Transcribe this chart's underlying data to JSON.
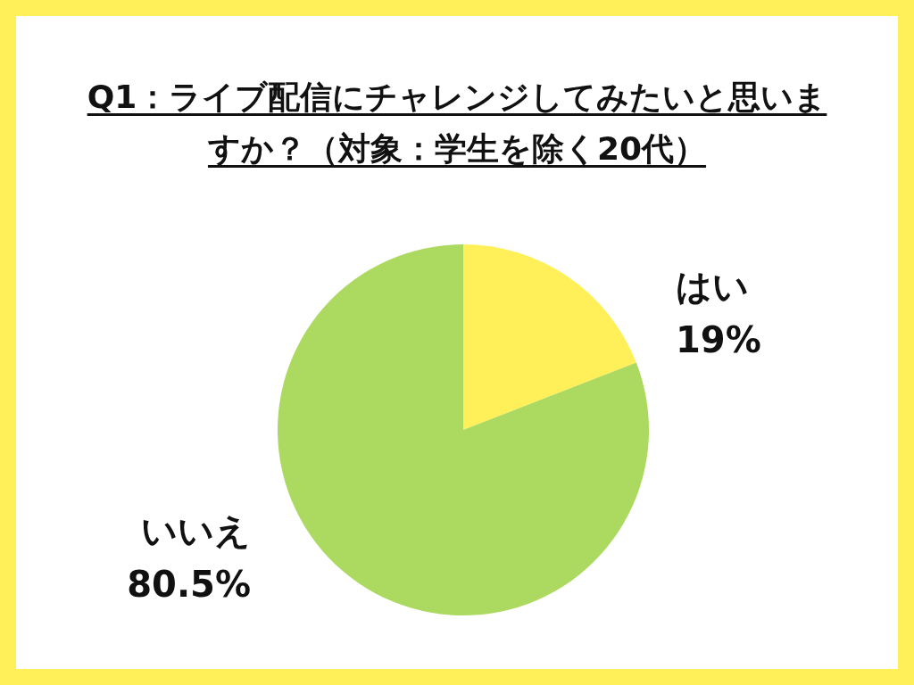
{
  "chart_data": {
    "type": "pie",
    "title": "Q1：ライブ配信にチャレンジしてみたいと思いますか？（対象：学生を除く20代）",
    "categories": [
      "はい",
      "いいえ"
    ],
    "values": [
      19,
      80.5
    ],
    "value_labels": [
      "19%",
      "80.5%"
    ],
    "colors": [
      "#fff05a",
      "#acd95f"
    ]
  }
}
